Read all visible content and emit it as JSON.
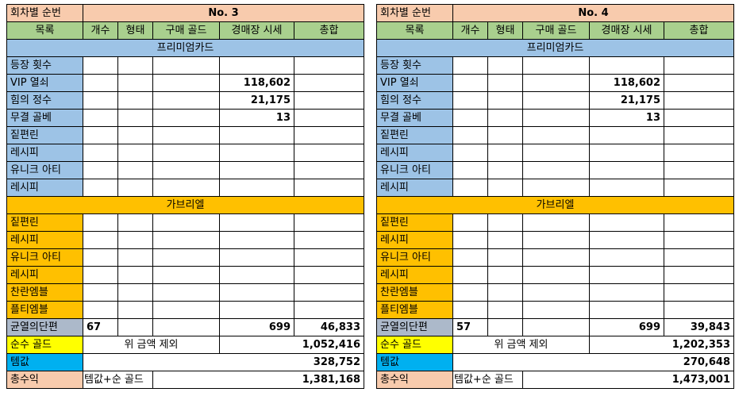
{
  "header_label": "회차별 순번",
  "columns": [
    "목록",
    "개수",
    "형태",
    "구매 골드",
    "경매장 시세",
    "총합"
  ],
  "premium_title": "프리미엄카드",
  "premium_rows": [
    "등장 횟수",
    "VIP 열쇠",
    "힘의 정수",
    "무결 골베",
    "짙편린",
    "레시피",
    "유니크 아티",
    "레시피"
  ],
  "gabriel_title": "가브리엘",
  "gabriel_rows": [
    "짙편린",
    "레시피",
    "유니크 아티",
    "레시피",
    "찬란엠블",
    "플티엠블"
  ],
  "fragment_label": "균열의단편",
  "net_gold_label": "순수 골드",
  "net_gold_note": "위 금액 제외",
  "item_value_label": "템값",
  "total_label": "총수익",
  "total_note": "템값+순 골드",
  "sheets": [
    {
      "title": "No. 3",
      "market": {
        "vip": "118,602",
        "essence": "21,175",
        "golbe": "13"
      },
      "fragment": {
        "count": "67",
        "price": "699",
        "total": "46,833"
      },
      "net_gold": "1,052,416",
      "item_value": "328,752",
      "total": "1,381,168"
    },
    {
      "title": "No. 4",
      "market": {
        "vip": "118,602",
        "essence": "21,175",
        "golbe": "13"
      },
      "fragment": {
        "count": "57",
        "price": "699",
        "total": "39,843"
      },
      "net_gold": "1,202,353",
      "item_value": "270,648",
      "total": "1,473,001"
    }
  ]
}
